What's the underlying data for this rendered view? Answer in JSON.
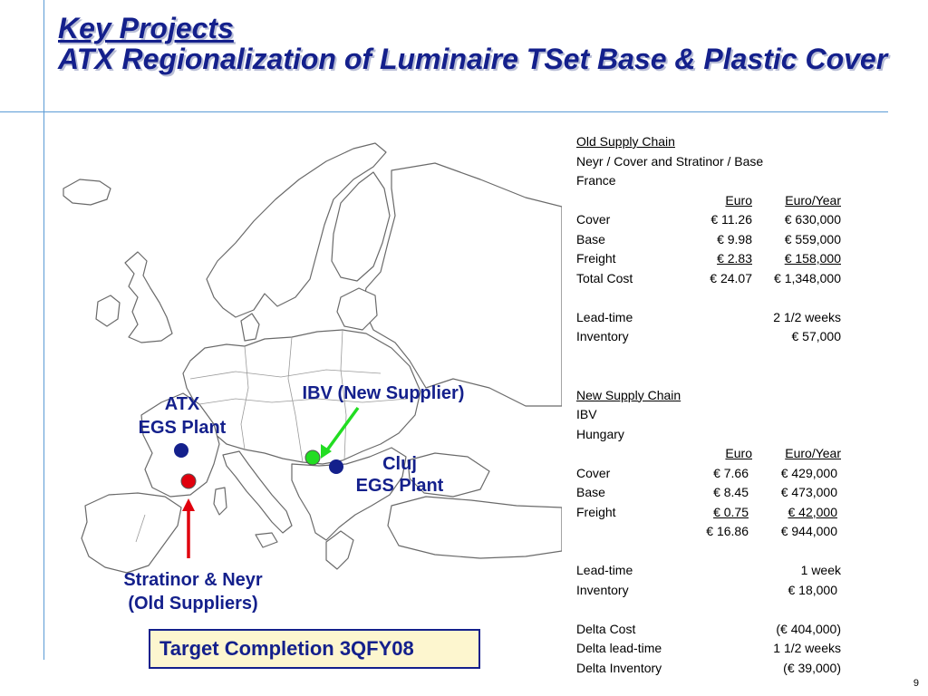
{
  "title": {
    "line1": "Key Projects",
    "line2": "ATX Regionalization of Luminaire TSet Base & Plastic Cover"
  },
  "map": {
    "labels": {
      "atx_line1": "ATX",
      "atx_line2": "EGS Plant",
      "ibv": "IBV (New Supplier)",
      "cluj_line1": "Cluj",
      "cluj_line2": "EGS Plant",
      "stratinor_line1": "Stratinor & Neyr",
      "stratinor_line2": "(Old Suppliers)"
    },
    "colors": {
      "plant": "#14208c",
      "old_supplier": "#e0000d",
      "new_supplier": "#22dd22",
      "arrow_old": "#e0000d",
      "arrow_new": "#22dd22"
    }
  },
  "target_completion": "Target Completion 3QFY08",
  "old_supply_chain": {
    "heading": "Old Supply Chain",
    "line1": "Neyr / Cover and Stratinor / Base",
    "line2": "France",
    "col_euro": "Euro",
    "col_euro_year": "Euro/Year",
    "rows": [
      {
        "label": "Cover",
        "euro": "€ 11.26",
        "euro_year": "€ 630,000"
      },
      {
        "label": "Base",
        "euro": "€ 9.98",
        "euro_year": "€ 559,000"
      },
      {
        "label": "Freight",
        "euro": "€ 2.83",
        "euro_year": "€ 158,000"
      },
      {
        "label": "Total Cost",
        "euro": "€ 24.07",
        "euro_year": "€ 1,348,000"
      }
    ],
    "lead_time_label": "Lead-time",
    "lead_time_value": "2 1/2 weeks",
    "inventory_label": "Inventory",
    "inventory_value": "€ 57,000"
  },
  "new_supply_chain": {
    "heading": "New Supply Chain",
    "line1": "IBV",
    "line2": "Hungary",
    "col_euro": "Euro",
    "col_euro_year": "Euro/Year",
    "rows": [
      {
        "label": "Cover",
        "euro": "€ 7.66",
        "euro_year": "€ 429,000"
      },
      {
        "label": "Base",
        "euro": "€ 8.45",
        "euro_year": "€ 473,000"
      },
      {
        "label": "Freight",
        "euro": "€ 0.75",
        "euro_year": "€ 42,000"
      }
    ],
    "total_euro": "€ 16.86",
    "total_euro_year": "€ 944,000",
    "lead_time_label": "Lead-time",
    "lead_time_value": "1 week",
    "inventory_label": "Inventory",
    "inventory_value": "€ 18,000"
  },
  "delta": {
    "cost_label": "Delta Cost",
    "cost_value": "(€ 404,000)",
    "lead_label": "Delta lead-time",
    "lead_value": "1 1/2 weeks",
    "inv_label": "Delta Inventory",
    "inv_value": "(€ 39,000)"
  },
  "page_number": "9"
}
